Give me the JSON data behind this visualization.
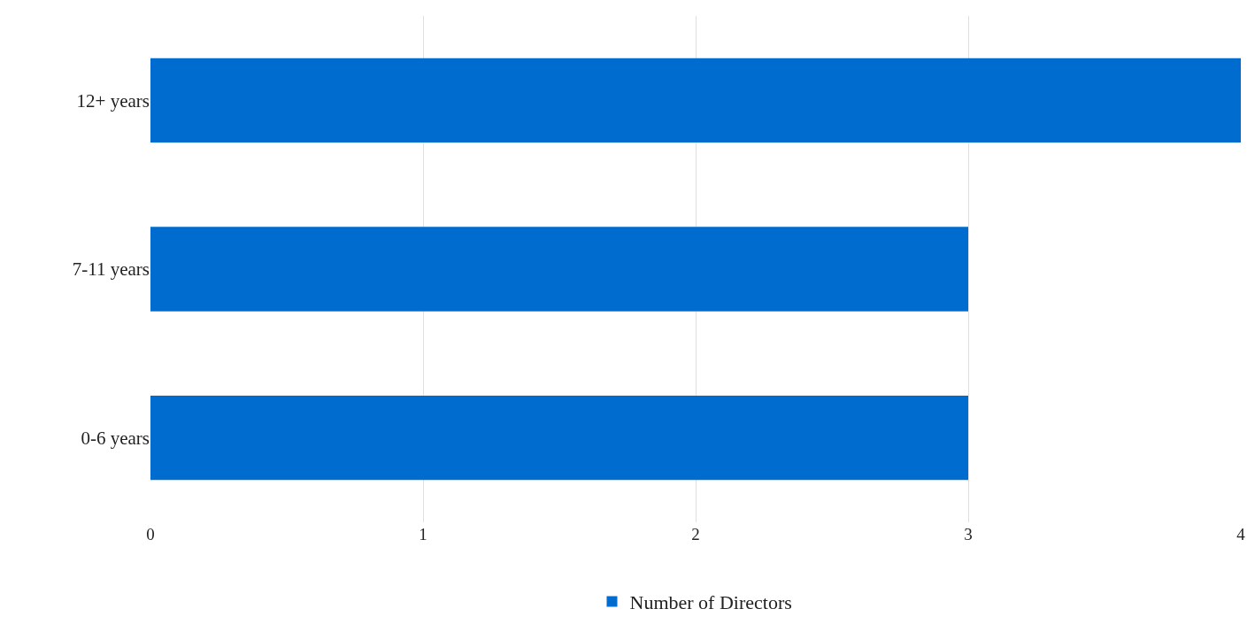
{
  "chart_data": {
    "type": "bar",
    "orientation": "horizontal",
    "categories": [
      "12+ years",
      "7-11 years",
      "0-6 years"
    ],
    "series": [
      {
        "name": "Number of Directors",
        "color": "#006ccf",
        "values": [
          4,
          3,
          3
        ]
      }
    ],
    "xlim": [
      0,
      4
    ],
    "xticks": [
      0,
      1,
      2,
      3,
      4
    ],
    "grid": "x",
    "legend": "bottom"
  }
}
